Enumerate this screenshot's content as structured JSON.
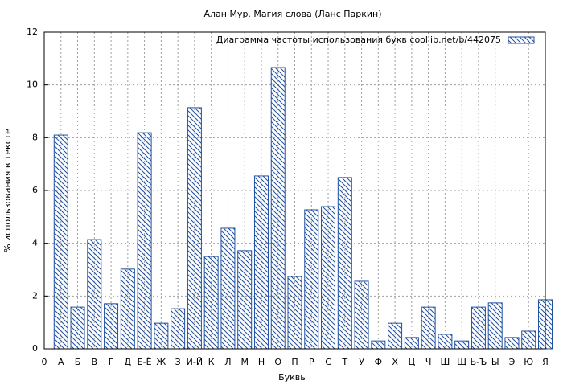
{
  "chart_data": {
    "type": "bar",
    "title": "Алан Мур. Магия слова (Ланс Паркин)",
    "x_label": "Буквы",
    "y_label": "% использования в тексте",
    "categories": [
      "0",
      "А",
      "Б",
      "В",
      "Г",
      "Д",
      "Е-Ё",
      "Ж",
      "З",
      "И-Й",
      "К",
      "Л",
      "М",
      "Н",
      "О",
      "П",
      "Р",
      "С",
      "Т",
      "У",
      "Ф",
      "Х",
      "Ц",
      "Ч",
      "Ш",
      "Щ",
      "Ь-Ъ",
      "Ы",
      "Э",
      "Ю",
      "Я"
    ],
    "series": [
      {
        "name": "Диаграмма частоты использования букв  coollib.net/b/442075",
        "color": "#2050a0",
        "values": [
          null,
          8.1,
          1.58,
          4.14,
          1.71,
          3.02,
          8.19,
          0.97,
          1.52,
          9.14,
          3.5,
          4.57,
          3.72,
          6.55,
          10.66,
          2.74,
          5.27,
          5.39,
          6.49,
          2.56,
          0.3,
          0.97,
          0.43,
          1.58,
          0.55,
          0.3,
          1.58,
          1.74,
          0.43,
          0.67,
          1.86
        ]
      }
    ],
    "ylim": [
      0,
      12
    ],
    "yticks": [
      0,
      2,
      4,
      6,
      8,
      10,
      12
    ],
    "grid": true,
    "legend": "top-right"
  }
}
